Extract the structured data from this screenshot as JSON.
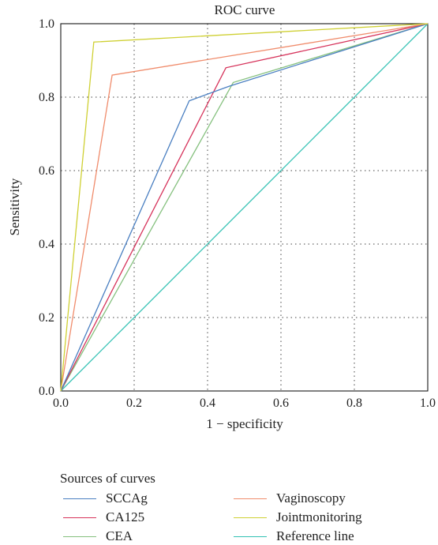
{
  "chart_data": {
    "type": "line",
    "title": "ROC curve",
    "xlabel": "1 − specificity",
    "ylabel": "Sensitivity",
    "xlim": [
      0,
      1
    ],
    "ylim": [
      0,
      1
    ],
    "x_ticks": [
      "0.0",
      "0.2",
      "0.4",
      "0.6",
      "0.8",
      "1.0"
    ],
    "y_ticks": [
      "0.0",
      "0.2",
      "0.4",
      "0.6",
      "0.8",
      "1.0"
    ],
    "grid": true,
    "legend_title": "Sources of curves",
    "legend_position": "bottom",
    "series": [
      {
        "name": "SCCAg",
        "color": "#4a7fc1",
        "x": [
          0,
          0.35,
          0.46,
          1
        ],
        "y": [
          0,
          0.79,
          0.83,
          1
        ]
      },
      {
        "name": "CA125",
        "color": "#d6335b",
        "x": [
          0,
          0.45,
          1
        ],
        "y": [
          0,
          0.88,
          1
        ]
      },
      {
        "name": "CEA",
        "color": "#86c17f",
        "x": [
          0,
          0.47,
          1
        ],
        "y": [
          0,
          0.84,
          1
        ]
      },
      {
        "name": "Vaginoscopy",
        "color": "#f08c6c",
        "x": [
          0,
          0.14,
          1
        ],
        "y": [
          0,
          0.86,
          1
        ]
      },
      {
        "name": "Jointmonitoring",
        "color": "#cfd033",
        "x": [
          0,
          0.09,
          1
        ],
        "y": [
          0,
          0.95,
          1
        ]
      },
      {
        "name": "Reference line",
        "color": "#34c2b4",
        "x": [
          0,
          1
        ],
        "y": [
          0,
          1
        ]
      }
    ]
  }
}
